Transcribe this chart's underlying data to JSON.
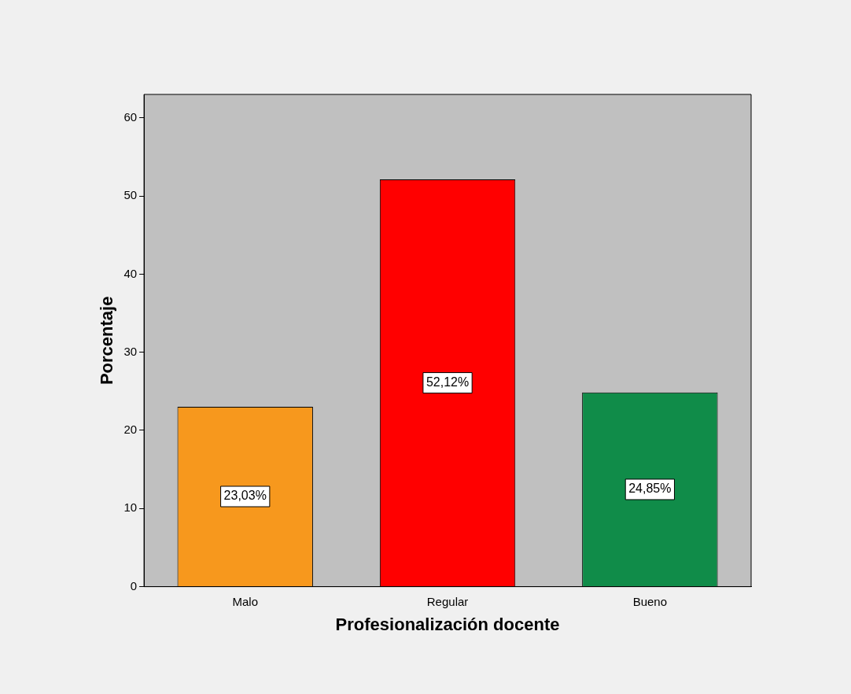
{
  "chart_data": {
    "type": "bar",
    "xlabel": "Profesionalización docente",
    "ylabel": "Porcentaje",
    "categories": [
      "Malo",
      "Regular",
      "Bueno"
    ],
    "values": [
      23.03,
      52.12,
      24.85
    ],
    "colors": [
      "#f7981d",
      "#ff0000",
      "#108c49"
    ],
    "value_labels": [
      "23,03%",
      "52,12%",
      "24,85%"
    ],
    "ylim": [
      0,
      63
    ],
    "yticks": [
      0,
      10,
      20,
      30,
      40,
      50,
      60
    ],
    "grid": false,
    "legend": false
  }
}
